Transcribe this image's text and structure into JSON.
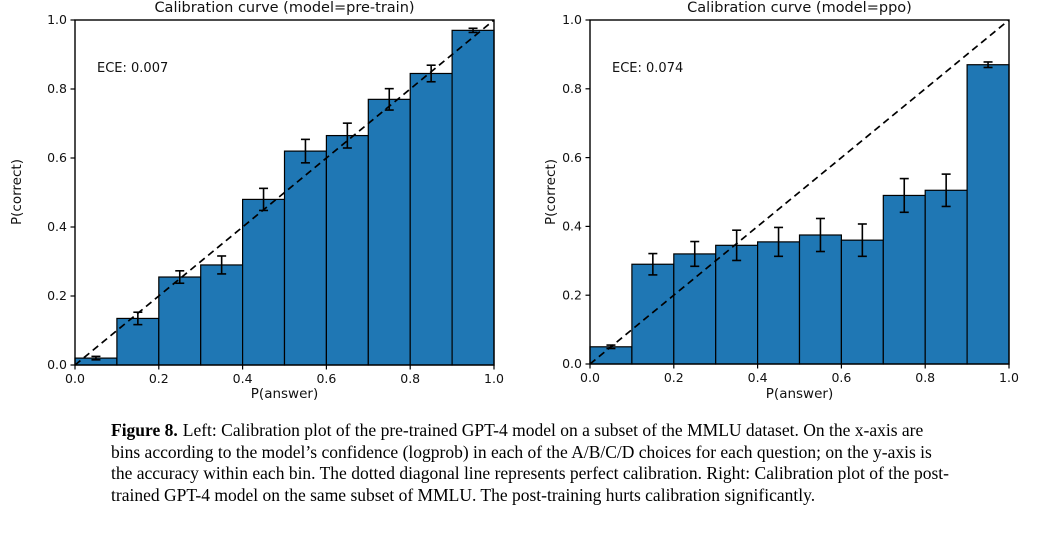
{
  "caption": {
    "label": "Figure 8.",
    "text": "Left: Calibration plot of the pre-trained GPT-4 model on a subset of the MMLU dataset. On the x-axis are bins according to the model’s confidence (logprob) in each of the A/B/C/D choices for each question; on the y-axis is the accuracy within each bin. The dotted diagonal line represents perfect calibration. Right: Calibration plot of the post-trained GPT-4 model on the same subset of MMLU. The post-training hurts calibration significantly."
  },
  "chart_data": [
    {
      "type": "bar",
      "title": "Calibration curve (model=pre-train)",
      "annotation": "ECE: 0.007",
      "xlabel": "P(answer)",
      "ylabel": "P(correct)",
      "xlim": [
        0.0,
        1.0
      ],
      "ylim": [
        0.0,
        1.0
      ],
      "xticks": [
        "0.0",
        "0.2",
        "0.4",
        "0.6",
        "0.8",
        "1.0"
      ],
      "yticks": [
        "0.0",
        "0.2",
        "0.4",
        "0.6",
        "0.8",
        "1.0"
      ],
      "bin_edges": [
        0.0,
        0.1,
        0.2,
        0.3,
        0.4,
        0.5,
        0.6,
        0.7,
        0.8,
        0.9,
        1.0
      ],
      "values": [
        0.02,
        0.135,
        0.255,
        0.29,
        0.48,
        0.62,
        0.665,
        0.77,
        0.845,
        0.97
      ],
      "errors": [
        0.005,
        0.018,
        0.018,
        0.026,
        0.032,
        0.034,
        0.036,
        0.031,
        0.024,
        0.006
      ],
      "diagonal": {
        "style": "dashed",
        "from": [
          0.0,
          0.0
        ],
        "to": [
          1.0,
          1.0
        ]
      },
      "bar_color": "#1f77b4",
      "bar_edge_color": "#000000",
      "grid": false,
      "legend": null
    },
    {
      "type": "bar",
      "title": "Calibration curve (model=ppo)",
      "annotation": "ECE: 0.074",
      "xlabel": "P(answer)",
      "ylabel": "P(correct)",
      "xlim": [
        0.0,
        1.0
      ],
      "ylim": [
        0.0,
        1.0
      ],
      "xticks": [
        "0.0",
        "0.2",
        "0.4",
        "0.6",
        "0.8",
        "1.0"
      ],
      "yticks": [
        "0.0",
        "0.2",
        "0.4",
        "0.6",
        "0.8",
        "1.0"
      ],
      "bin_edges": [
        0.0,
        0.1,
        0.2,
        0.3,
        0.4,
        0.5,
        0.6,
        0.7,
        0.8,
        0.9,
        1.0
      ],
      "values": [
        0.05,
        0.29,
        0.32,
        0.345,
        0.355,
        0.375,
        0.36,
        0.49,
        0.505,
        0.87
      ],
      "errors": [
        0.005,
        0.031,
        0.036,
        0.044,
        0.042,
        0.048,
        0.047,
        0.049,
        0.047,
        0.008
      ],
      "diagonal": {
        "style": "dashed",
        "from": [
          0.0,
          0.0
        ],
        "to": [
          1.0,
          1.0
        ]
      },
      "bar_color": "#1f77b4",
      "bar_edge_color": "#000000",
      "grid": false,
      "legend": null
    }
  ]
}
